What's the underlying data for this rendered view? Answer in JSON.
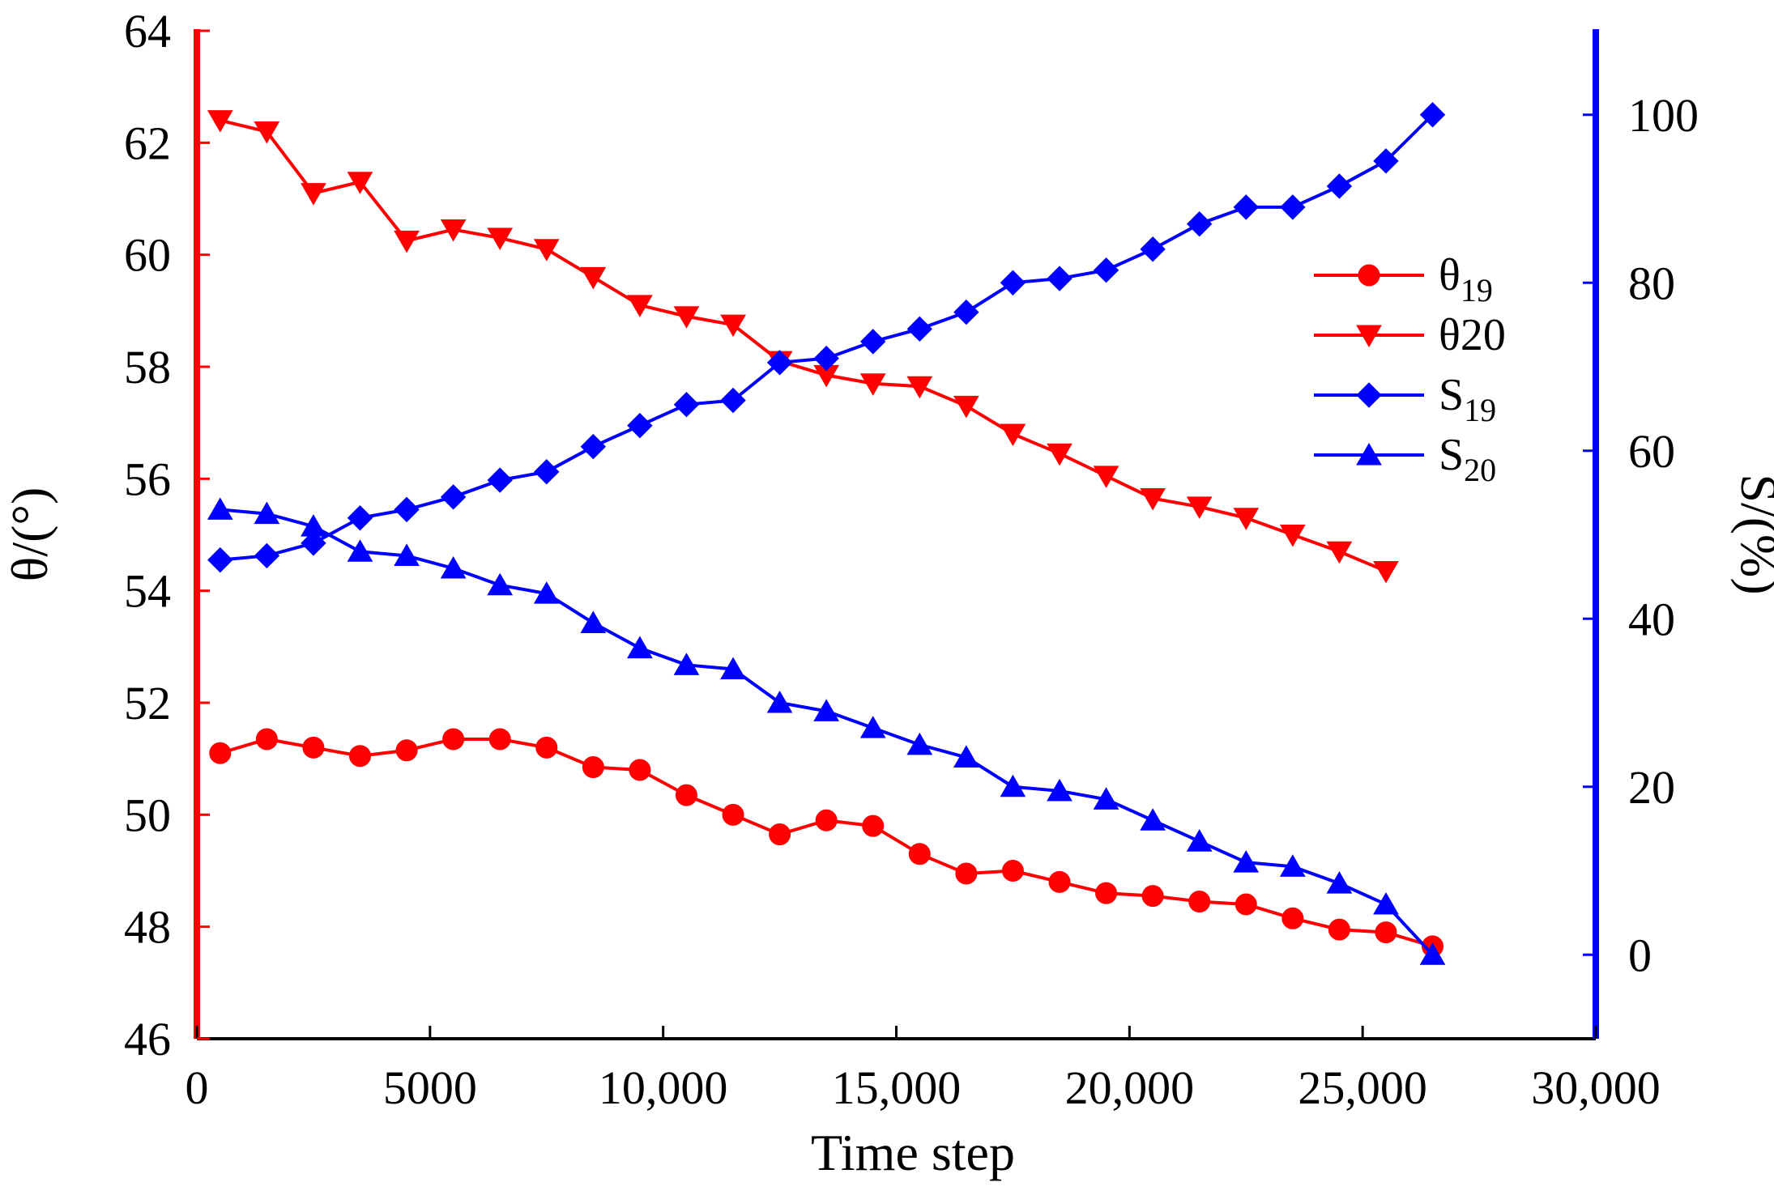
{
  "chart_data": {
    "type": "line",
    "title": "",
    "xlabel": "Time step",
    "ylabel_left": "θ/(°)",
    "ylabel_right": "S/(%)",
    "xlim": [
      0,
      30000
    ],
    "ylim_left": [
      46,
      64
    ],
    "ylim_right": [
      -10,
      110
    ],
    "x_ticks": [
      "0",
      "5000",
      "10,000",
      "15,000",
      "20,000",
      "25,000",
      "30,000"
    ],
    "y_left_ticks": [
      "46",
      "48",
      "50",
      "52",
      "54",
      "56",
      "58",
      "60",
      "62",
      "64"
    ],
    "y_right_ticks": [
      "0",
      "20",
      "40",
      "60",
      "80",
      "100"
    ],
    "colors": {
      "left_axis": "#ff0000",
      "right_axis": "#0000ff",
      "theta": "#ff0000",
      "s": "#0000ff"
    },
    "legend_position": "right-center",
    "series": [
      {
        "name": "θ19",
        "base": "θ",
        "sub": "19",
        "axis": "left",
        "marker": "circle",
        "color": "#ff0000",
        "x": [
          500,
          1500,
          2500,
          3500,
          4500,
          5500,
          6500,
          7500,
          8500,
          9500,
          10500,
          11500,
          12500,
          13500,
          14500,
          15500,
          16500,
          17500,
          18500,
          19500,
          20500,
          21500,
          22500,
          23500,
          24500,
          25500,
          26500
        ],
        "values": [
          51.1,
          51.35,
          51.2,
          51.05,
          51.15,
          51.35,
          51.35,
          51.2,
          50.85,
          50.8,
          50.35,
          50.0,
          49.65,
          49.9,
          49.8,
          49.3,
          48.95,
          49.0,
          48.8,
          48.6,
          48.55,
          48.45,
          48.4,
          48.15,
          47.95,
          47.9,
          47.65
        ]
      },
      {
        "name": "θ20",
        "base": "θ20",
        "sub": "",
        "axis": "left",
        "marker": "triangle-down",
        "color": "#ff0000",
        "x": [
          500,
          1500,
          2500,
          3500,
          4500,
          5500,
          6500,
          7500,
          8500,
          9500,
          10500,
          11500,
          12500,
          13500,
          14500,
          15500,
          16500,
          17500,
          18500,
          19500,
          20500,
          21500,
          22500,
          23500,
          24500,
          25500
        ],
        "values": [
          62.4,
          62.2,
          61.1,
          61.3,
          60.25,
          60.45,
          60.3,
          60.1,
          59.6,
          59.1,
          58.9,
          58.75,
          58.1,
          57.85,
          57.7,
          57.65,
          57.3,
          56.8,
          56.45,
          56.05,
          55.65,
          55.5,
          55.3,
          55.0,
          54.7,
          54.35
        ]
      },
      {
        "name": "S19",
        "base": "S",
        "sub": "19",
        "axis": "right",
        "marker": "diamond",
        "color": "#0000ff",
        "x": [
          500,
          1500,
          2500,
          3500,
          4500,
          5500,
          6500,
          7500,
          8500,
          9500,
          10500,
          11500,
          12500,
          13500,
          14500,
          15500,
          16500,
          17500,
          18500,
          19500,
          20500,
          21500,
          22500,
          23500,
          24500,
          25500,
          26500
        ],
        "values": [
          47,
          47.5,
          49,
          52,
          53,
          54.5,
          56.5,
          57.5,
          60.5,
          63,
          65.5,
          66,
          70.5,
          71,
          73,
          74.5,
          76.5,
          80,
          80.5,
          81.5,
          84,
          87,
          89,
          89,
          91.5,
          94.5,
          100
        ]
      },
      {
        "name": "S20",
        "base": "S",
        "sub": "20",
        "axis": "right",
        "marker": "triangle-up",
        "color": "#0000ff",
        "x": [
          500,
          1500,
          2500,
          3500,
          4500,
          5500,
          6500,
          7500,
          8500,
          9500,
          10500,
          11500,
          12500,
          13500,
          14500,
          15500,
          16500,
          17500,
          18500,
          19500,
          20500,
          21500,
          22500,
          23500,
          24500,
          25500,
          26500
        ],
        "values": [
          53,
          52.5,
          51,
          48,
          47.5,
          46,
          44,
          43,
          39.5,
          36.5,
          34.5,
          34,
          30,
          29,
          27,
          25,
          23.5,
          20,
          19.5,
          18.5,
          16,
          13.5,
          11,
          10.5,
          8.5,
          6,
          0
        ]
      }
    ]
  }
}
